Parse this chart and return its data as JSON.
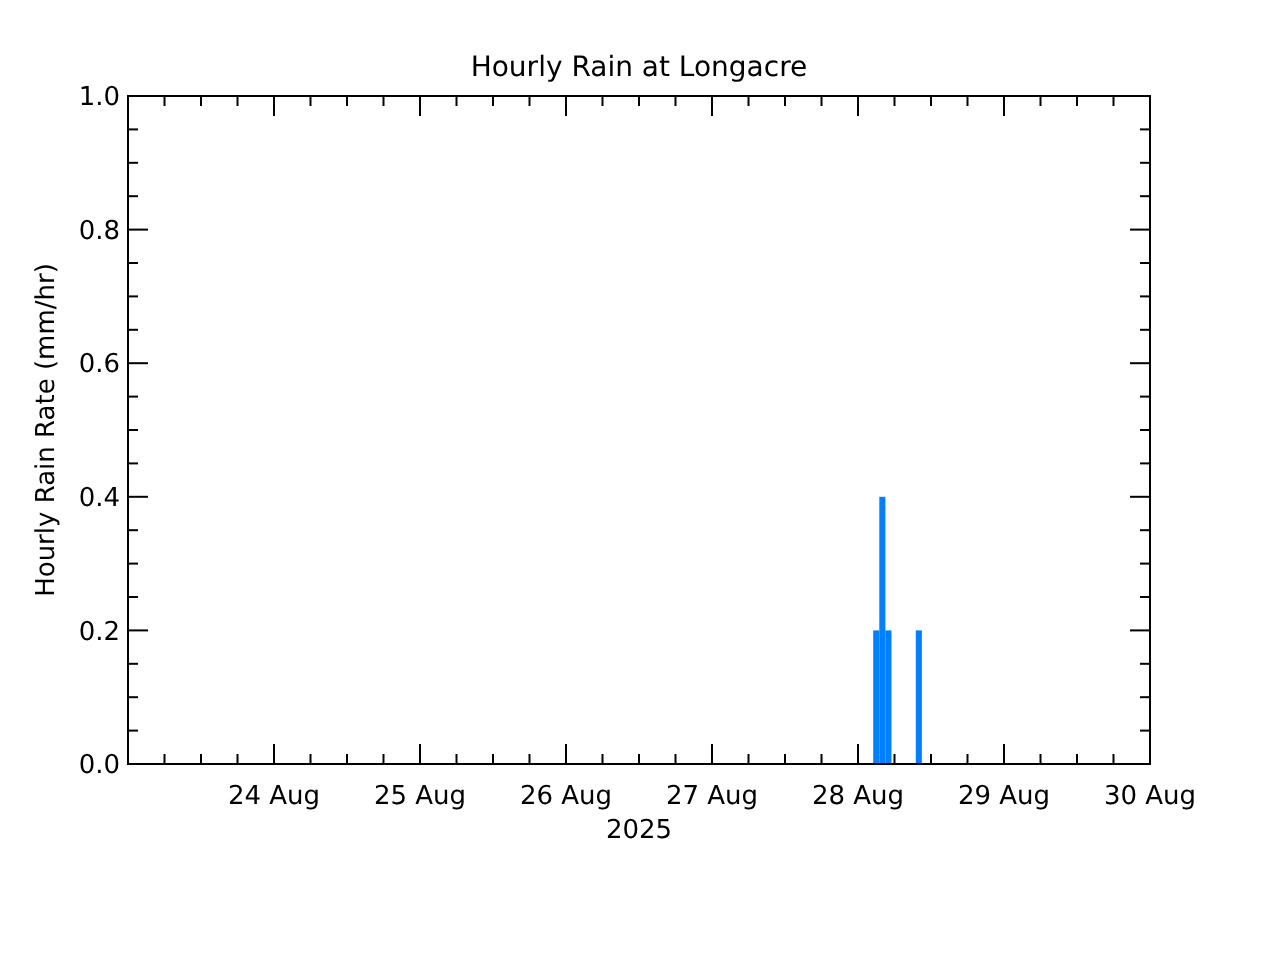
{
  "chart_data": {
    "type": "bar",
    "title": "Hourly Rain at Longacre",
    "xlabel": "2025",
    "ylabel": "Hourly Rain Rate (mm/hr)",
    "x": [
      "2025-08-28T03:00",
      "2025-08-28T04:00",
      "2025-08-28T05:00",
      "2025-08-28T10:00"
    ],
    "values": [
      0.2,
      0.4,
      0.2,
      0.2
    ],
    "color": "#0080ff",
    "xlim": [
      "2025-08-23",
      "2025-08-30"
    ],
    "xticks": [
      {
        "value": "2025-08-23T06:00",
        "label": null
      },
      {
        "value": "2025-08-23T12:00",
        "label": null
      },
      {
        "value": "2025-08-23T18:00",
        "label": null
      },
      {
        "value": "2025-08-24",
        "label": "24 Aug"
      },
      {
        "value": "2025-08-24T06:00",
        "label": null
      },
      {
        "value": "2025-08-24T12:00",
        "label": null
      },
      {
        "value": "2025-08-24T18:00",
        "label": null
      },
      {
        "value": "2025-08-25",
        "label": "25 Aug"
      },
      {
        "value": "2025-08-25T06:00",
        "label": null
      },
      {
        "value": "2025-08-25T12:00",
        "label": null
      },
      {
        "value": "2025-08-25T18:00",
        "label": null
      },
      {
        "value": "2025-08-26",
        "label": "26 Aug"
      },
      {
        "value": "2025-08-26T06:00",
        "label": null
      },
      {
        "value": "2025-08-26T12:00",
        "label": null
      },
      {
        "value": "2025-08-26T18:00",
        "label": null
      },
      {
        "value": "2025-08-27",
        "label": "27 Aug"
      },
      {
        "value": "2025-08-27T06:00",
        "label": null
      },
      {
        "value": "2025-08-27T12:00",
        "label": null
      },
      {
        "value": "2025-08-27T18:00",
        "label": null
      },
      {
        "value": "2025-08-28",
        "label": "28 Aug"
      },
      {
        "value": "2025-08-28T06:00",
        "label": null
      },
      {
        "value": "2025-08-28T12:00",
        "label": null
      },
      {
        "value": "2025-08-28T18:00",
        "label": null
      },
      {
        "value": "2025-08-29",
        "label": "29 Aug"
      },
      {
        "value": "2025-08-29T06:00",
        "label": null
      },
      {
        "value": "2025-08-29T12:00",
        "label": null
      },
      {
        "value": "2025-08-29T18:00",
        "label": null
      },
      {
        "value": "2025-08-30",
        "label": "30 Aug"
      }
    ],
    "ylim": [
      0,
      1
    ],
    "yticks": [
      {
        "value": 0,
        "label": "0.0"
      },
      {
        "value": 0.05,
        "label": null
      },
      {
        "value": 0.1,
        "label": null
      },
      {
        "value": 0.15,
        "label": null
      },
      {
        "value": 0.2,
        "label": "0.2"
      },
      {
        "value": 0.25,
        "label": null
      },
      {
        "value": 0.3,
        "label": null
      },
      {
        "value": 0.35,
        "label": null
      },
      {
        "value": 0.4,
        "label": "0.4"
      },
      {
        "value": 0.45,
        "label": null
      },
      {
        "value": 0.5,
        "label": null
      },
      {
        "value": 0.55,
        "label": null
      },
      {
        "value": 0.6,
        "label": "0.6"
      },
      {
        "value": 0.65,
        "label": null
      },
      {
        "value": 0.7,
        "label": null
      },
      {
        "value": 0.75,
        "label": null
      },
      {
        "value": 0.8,
        "label": "0.8"
      },
      {
        "value": 0.85,
        "label": null
      },
      {
        "value": 0.9,
        "label": null
      },
      {
        "value": 0.95,
        "label": null
      },
      {
        "value": 1,
        "label": "1.0"
      }
    ],
    "grid": false
  }
}
